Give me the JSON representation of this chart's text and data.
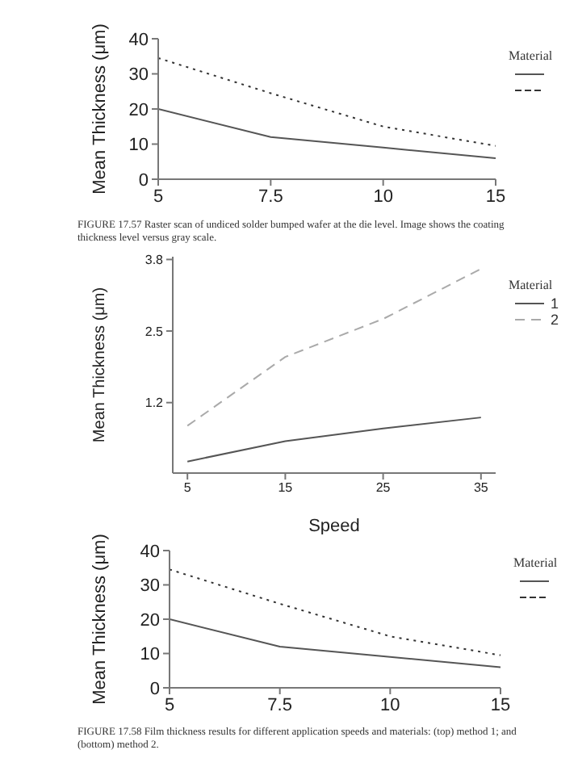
{
  "chart_data": [
    {
      "type": "line",
      "categories": [
        "5",
        "7.5",
        "10",
        "15"
      ],
      "ylabel": "Mean Thickness (μm)",
      "ylim": [
        0,
        40
      ],
      "yticks": [
        0,
        10,
        20,
        30,
        40
      ],
      "legend": "right",
      "legend_title": "Material",
      "series": [
        {
          "color": "#555555",
          "line_style": "solid",
          "values": [
            20,
            12,
            9,
            6
          ]
        },
        {
          "color": "#333333",
          "line_style": "dotted",
          "values": [
            34.5,
            24.5,
            15,
            9.5
          ]
        }
      ],
      "annotations": [
        "FIGURE 17.57    Raster scan of undiced solder bumped wafer at the die level. Image shows the coating thickness level versus gray scale."
      ]
    },
    {
      "type": "line",
      "x": [
        5,
        15,
        25,
        35
      ],
      "xlabel": "Speed",
      "ylabel": "Mean Thickness (μm)",
      "xlim": [
        3.5,
        36.5
      ],
      "xticks": [
        5,
        15,
        25,
        35
      ],
      "ylim": [
        -0.08,
        3.85
      ],
      "yticks": [
        1.2,
        2.5,
        3.8
      ],
      "legend": "right",
      "legend_title": "Material",
      "series": [
        {
          "name": "1",
          "color": "#555555",
          "line_style": "solid",
          "values": [
            0.13,
            0.5,
            0.73,
            0.93
          ]
        },
        {
          "name": "2",
          "color": "#aaaaaa",
          "line_style": "dashed",
          "values": [
            0.78,
            2.03,
            2.72,
            3.63
          ]
        }
      ]
    },
    {
      "type": "line",
      "categories": [
        "5",
        "7.5",
        "10",
        "15"
      ],
      "ylabel": "Mean Thickness (μm)",
      "ylim": [
        0,
        40
      ],
      "yticks": [
        0,
        10,
        20,
        30,
        40
      ],
      "legend": "right",
      "legend_title": "Material",
      "series": [
        {
          "color": "#555555",
          "line_style": "solid",
          "values": [
            20,
            12,
            9,
            6
          ]
        },
        {
          "color": "#333333",
          "line_style": "dotted",
          "values": [
            34.5,
            24.5,
            15,
            9.5
          ]
        }
      ],
      "annotations": [
        "FIGURE 17.58    Film thickness results for different application speeds and materials: (top) method 1; and (bottom) method 2."
      ]
    }
  ]
}
